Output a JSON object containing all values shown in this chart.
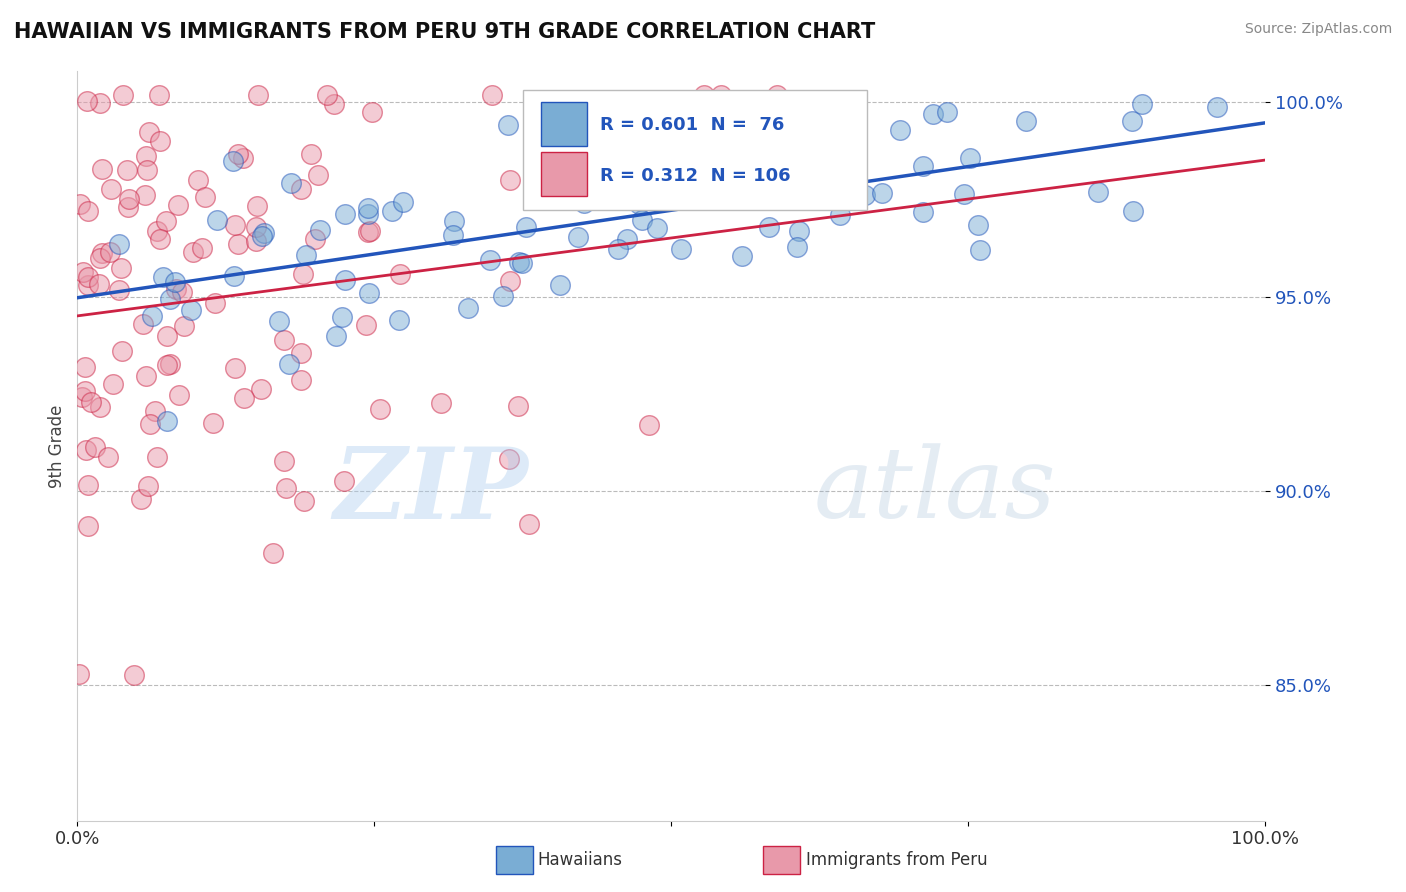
{
  "title": "HAWAIIAN VS IMMIGRANTS FROM PERU 9TH GRADE CORRELATION CHART",
  "source": "Source: ZipAtlas.com",
  "ylabel": "9th Grade",
  "xlim": [
    0.0,
    1.0
  ],
  "ylim": [
    0.815,
    1.008
  ],
  "yticks": [
    0.85,
    0.9,
    0.95,
    1.0
  ],
  "ytick_labels": [
    "85.0%",
    "90.0%",
    "95.0%",
    "100.0%"
  ],
  "hawaiian_R": 0.601,
  "hawaiian_N": 76,
  "peru_R": 0.312,
  "peru_N": 106,
  "hawaiian_color": "#7aadd4",
  "peru_color": "#e899aa",
  "trend_hawaiian_color": "#2255bb",
  "trend_peru_color": "#cc2244",
  "legend_label_hawaiian": "Hawaiians",
  "legend_label_peru": "Immigrants from Peru",
  "watermark_zip_color": "#aaccee",
  "watermark_atlas_color": "#88aacc",
  "background_color": "#ffffff",
  "grid_color": "#bbbbbb"
}
